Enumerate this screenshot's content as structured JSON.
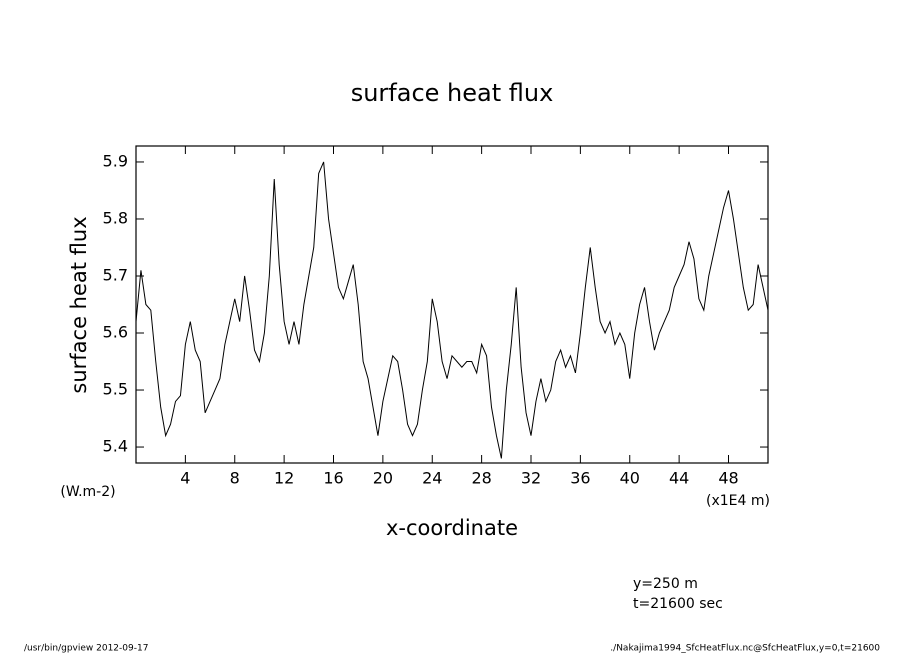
{
  "chart_data": {
    "type": "line",
    "title": "surface heat flux",
    "ylabel": "surface heat flux",
    "yunits": "(W.m-2)",
    "xlabel": "x-coordinate",
    "xunits": "(x1E4 m)",
    "annotations": [
      "y=250 m",
      "t=21600 sec"
    ],
    "footer_left": "/usr/bin/gpview  2012-09-17",
    "footer_right": "./Nakajima1994_SfcHeatFlux.nc@SfcHeatFlux,y=0,t=21600",
    "color": "#000000",
    "xlim": [
      0,
      51.2
    ],
    "ylim": [
      5.372,
      5.928
    ],
    "xticks": [
      4,
      8,
      12,
      16,
      20,
      24,
      28,
      32,
      36,
      40,
      44,
      48
    ],
    "yticks": [
      5.4,
      5.5,
      5.6,
      5.7,
      5.8,
      5.9
    ],
    "x": [
      0,
      0.4,
      0.8,
      1.2,
      1.6,
      2.0,
      2.4,
      2.8,
      3.2,
      3.6,
      4.0,
      4.4,
      4.8,
      5.2,
      5.6,
      6.0,
      6.4,
      6.8,
      7.2,
      7.6,
      8.0,
      8.4,
      8.8,
      9.2,
      9.6,
      10.0,
      10.4,
      10.8,
      11.2,
      11.6,
      12.0,
      12.4,
      12.8,
      13.2,
      13.6,
      14.0,
      14.4,
      14.8,
      15.2,
      15.6,
      16.0,
      16.4,
      16.8,
      17.2,
      17.6,
      18.0,
      18.4,
      18.8,
      19.2,
      19.6,
      20.0,
      20.4,
      20.8,
      21.2,
      21.6,
      22.0,
      22.4,
      22.8,
      23.2,
      23.6,
      24.0,
      24.4,
      24.8,
      25.2,
      25.6,
      26.0,
      26.4,
      26.8,
      27.2,
      27.6,
      28.0,
      28.4,
      28.8,
      29.2,
      29.6,
      30.0,
      30.4,
      30.8,
      31.2,
      31.6,
      32.0,
      32.4,
      32.8,
      33.2,
      33.6,
      34.0,
      34.4,
      34.8,
      35.2,
      35.6,
      36.0,
      36.4,
      36.8,
      37.2,
      37.6,
      38.0,
      38.4,
      38.8,
      39.2,
      39.6,
      40.0,
      40.4,
      40.8,
      41.2,
      41.6,
      42.0,
      42.4,
      42.8,
      43.2,
      43.6,
      44.0,
      44.4,
      44.8,
      45.2,
      45.6,
      46.0,
      46.4,
      46.8,
      47.2,
      47.6,
      48.0,
      48.4,
      48.8,
      49.2,
      49.6,
      50.0,
      50.4,
      50.8,
      51.2
    ],
    "values": [
      5.62,
      5.71,
      5.65,
      5.64,
      5.55,
      5.47,
      5.42,
      5.44,
      5.48,
      5.49,
      5.58,
      5.62,
      5.57,
      5.55,
      5.46,
      5.48,
      5.5,
      5.52,
      5.58,
      5.62,
      5.66,
      5.62,
      5.7,
      5.64,
      5.57,
      5.55,
      5.6,
      5.7,
      5.87,
      5.72,
      5.62,
      5.58,
      5.62,
      5.58,
      5.65,
      5.7,
      5.75,
      5.88,
      5.9,
      5.8,
      5.74,
      5.68,
      5.66,
      5.69,
      5.72,
      5.65,
      5.55,
      5.52,
      5.47,
      5.42,
      5.48,
      5.52,
      5.56,
      5.55,
      5.5,
      5.44,
      5.42,
      5.44,
      5.5,
      5.55,
      5.66,
      5.62,
      5.55,
      5.52,
      5.56,
      5.55,
      5.54,
      5.55,
      5.55,
      5.53,
      5.58,
      5.56,
      5.47,
      5.42,
      5.38,
      5.5,
      5.58,
      5.68,
      5.54,
      5.46,
      5.42,
      5.48,
      5.52,
      5.48,
      5.5,
      5.55,
      5.57,
      5.54,
      5.56,
      5.53,
      5.6,
      5.68,
      5.75,
      5.68,
      5.62,
      5.6,
      5.62,
      5.58,
      5.6,
      5.58,
      5.52,
      5.6,
      5.65,
      5.68,
      5.62,
      5.57,
      5.6,
      5.62,
      5.64,
      5.68,
      5.7,
      5.72,
      5.76,
      5.73,
      5.66,
      5.64,
      5.7,
      5.74,
      5.78,
      5.82,
      5.85,
      5.8,
      5.74,
      5.68,
      5.64,
      5.65,
      5.72,
      5.68,
      5.64
    ]
  }
}
